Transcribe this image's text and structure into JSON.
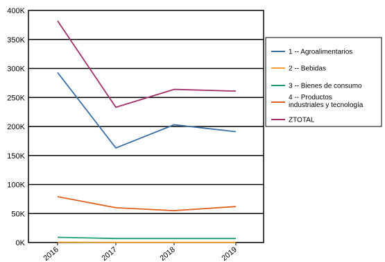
{
  "chart_data": {
    "type": "line",
    "title": "",
    "xlabel": "",
    "ylabel": "",
    "categories": [
      "2016",
      "2017",
      "2018",
      "2019"
    ],
    "ylim": [
      0,
      400000
    ],
    "y_ticks": [
      0,
      50000,
      100000,
      150000,
      200000,
      250000,
      300000,
      350000,
      400000
    ],
    "y_tick_labels": [
      "0K",
      "50K",
      "100K",
      "150K",
      "200K",
      "250K",
      "300K",
      "350K",
      "400K"
    ],
    "grid": "horizontal",
    "legend_position": "right",
    "series": [
      {
        "name": "1 -- Agroalimentarios",
        "color": "#3a6ea5",
        "values": [
          293000,
          163000,
          203000,
          191000
        ]
      },
      {
        "name": "2 -- Bebidas",
        "color": "#f5a030",
        "values": [
          600,
          400,
          400,
          400
        ]
      },
      {
        "name": "3 -- Bienes de consumo",
        "color": "#1a9c6c",
        "values": [
          9000,
          7000,
          7000,
          7000
        ]
      },
      {
        "name": "4 -- Productos industriales y tecnología",
        "color": "#e06020",
        "values": [
          79000,
          60000,
          55000,
          62000
        ]
      },
      {
        "name": "ZTOTAL",
        "color": "#a0306a",
        "values": [
          382000,
          233000,
          264000,
          261000
        ]
      }
    ]
  }
}
